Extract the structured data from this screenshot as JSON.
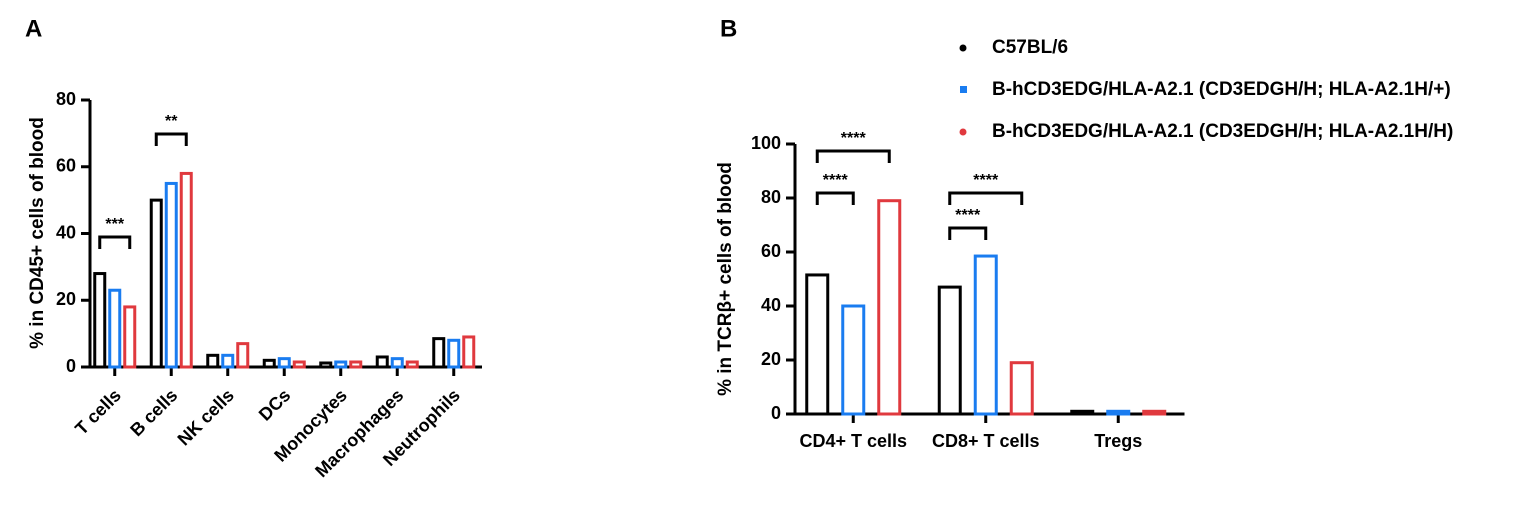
{
  "chart_data": [
    {
      "type": "bar",
      "panel": "A",
      "y_label": "% in CD45+ cells of blood",
      "categories": [
        "T cells",
        "B cells",
        "NK cells",
        "DCs",
        "Monocytes",
        "Macrophages",
        "Neutrophils"
      ],
      "series": [
        {
          "color": "#000000",
          "values": [
            28,
            50,
            3.5,
            2,
            1.2,
            3,
            8.5
          ]
        },
        {
          "color": "#1a7cf0",
          "values": [
            23,
            55,
            3.5,
            2.5,
            1.5,
            2.5,
            8
          ]
        },
        {
          "color": "#e0393e",
          "values": [
            18,
            58,
            7,
            1.5,
            1.5,
            1.5,
            9
          ]
        }
      ],
      "ylim": [
        0,
        80
      ],
      "yticks": [
        0,
        20,
        40,
        60,
        80
      ],
      "annotations": [
        "***",
        "**"
      ]
    },
    {
      "type": "bar",
      "panel": "B",
      "y_label": "% in TCRβ+ cells of blood",
      "categories": [
        "CD4+ T cells",
        "CD8+ T cells",
        "Tregs"
      ],
      "series": [
        {
          "name": "C57BL/6",
          "color": "#000000",
          "values": [
            51.5,
            47,
            1
          ]
        },
        {
          "name": "B-hCD3EDG/HLA-A2.1 (CD3EDGH/H; HLA-A2.1H/+)",
          "color": "#1a7cf0",
          "values": [
            40,
            58.5,
            1
          ]
        },
        {
          "name": "B-hCD3EDG/HLA-A2.1 (CD3EDGH/H; HLA-A2.1H/H)",
          "color": "#e0393e",
          "values": [
            79,
            19,
            1
          ]
        }
      ],
      "ylim": [
        0,
        100
      ],
      "yticks": [
        0,
        20,
        40,
        60,
        80,
        100
      ],
      "annotations": [
        "****",
        "****",
        "****",
        "****"
      ]
    }
  ]
}
